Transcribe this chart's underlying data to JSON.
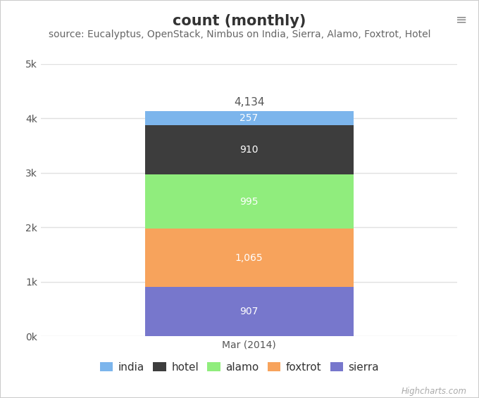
{
  "title": "count (monthly)",
  "subtitle": "source: Eucalyptus, OpenStack, Nimbus on India, Sierra, Alamo, Foxtrot, Hotel",
  "x_label": "Mar (2014)",
  "y_ticks": [
    0,
    1000,
    2000,
    3000,
    4000,
    5000
  ],
  "y_tick_labels": [
    "0k",
    "1k",
    "2k",
    "3k",
    "4k",
    "5k"
  ],
  "y_max": 5000,
  "total_label": "4,134",
  "segments": [
    {
      "label": "india",
      "value": 257,
      "color": "#7cb5ec"
    },
    {
      "label": "hotel",
      "value": 910,
      "color": "#3d3d3d"
    },
    {
      "label": "alamo",
      "value": 995,
      "color": "#90ed7d"
    },
    {
      "label": "foxtrot",
      "value": 1065,
      "color": "#f7a35c"
    },
    {
      "label": "sierra",
      "value": 907,
      "color": "#7777cc"
    }
  ],
  "stack_order": [
    "sierra",
    "foxtrot",
    "alamo",
    "hotel",
    "india"
  ],
  "legend_order": [
    "india",
    "hotel",
    "alamo",
    "foxtrot",
    "sierra"
  ],
  "background_color": "#ffffff",
  "plot_bg_color": "#ffffff",
  "grid_color": "#e0e0e0",
  "highcharts_text": "Highcharts.com",
  "menu_icon_color": "#888888",
  "title_fontsize": 15,
  "subtitle_fontsize": 10,
  "tick_label_fontsize": 10,
  "segment_label_fontsize": 10,
  "legend_fontsize": 11,
  "total_label_fontsize": 11
}
